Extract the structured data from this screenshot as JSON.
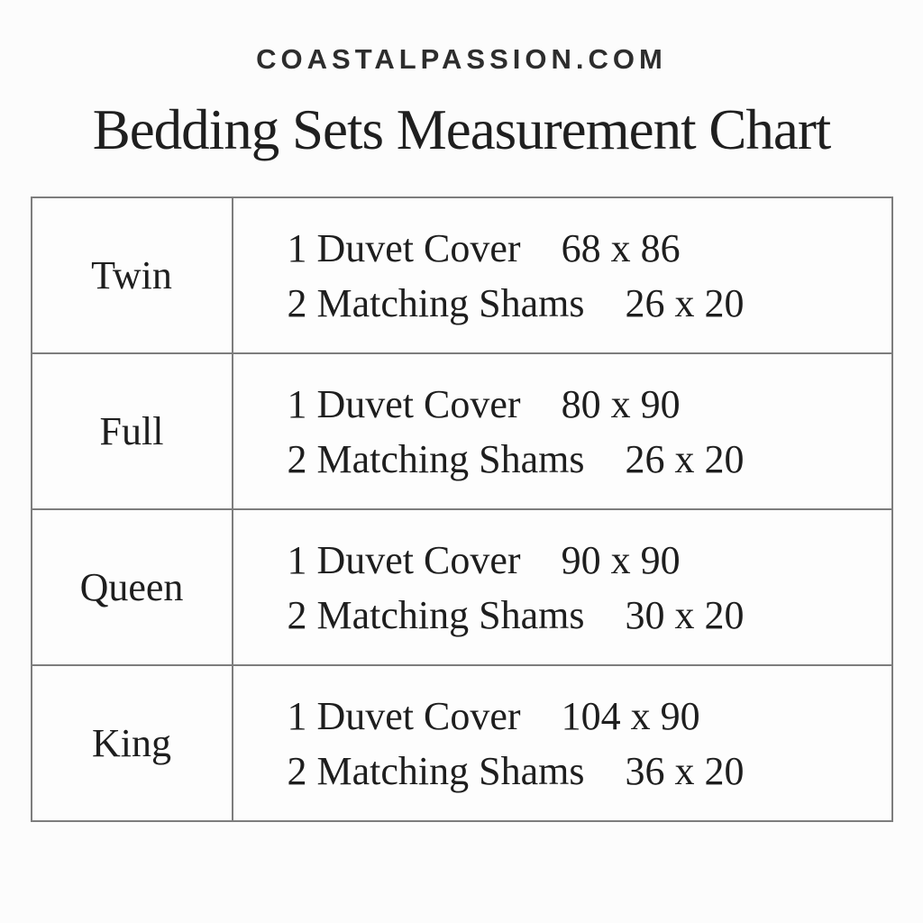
{
  "site_name": "COASTALPASSION.COM",
  "chart_data": {
    "type": "table",
    "title": "Bedding Sets Measurement Chart",
    "rows": [
      {
        "size": "Twin",
        "lines": [
          {
            "item": "1 Duvet Cover",
            "dimensions": "68 x 86"
          },
          {
            "item": "2 Matching Shams",
            "dimensions": "26 x 20"
          }
        ]
      },
      {
        "size": "Full",
        "lines": [
          {
            "item": "1 Duvet Cover",
            "dimensions": "80 x 90"
          },
          {
            "item": "2 Matching Shams",
            "dimensions": "26 x 20"
          }
        ]
      },
      {
        "size": "Queen",
        "lines": [
          {
            "item": "1 Duvet Cover",
            "dimensions": "90 x 90"
          },
          {
            "item": "2 Matching Shams",
            "dimensions": "30 x 20"
          }
        ]
      },
      {
        "size": "King",
        "lines": [
          {
            "item": "1 Duvet Cover",
            "dimensions": "104 x 90"
          },
          {
            "item": "2 Matching Shams",
            "dimensions": "36 x 20"
          }
        ]
      }
    ]
  },
  "colors": {
    "background": "#fcfcfc",
    "text": "#1e1e1e",
    "site_name_text": "#2d2d2d",
    "table_border": "#7d7d7d"
  }
}
